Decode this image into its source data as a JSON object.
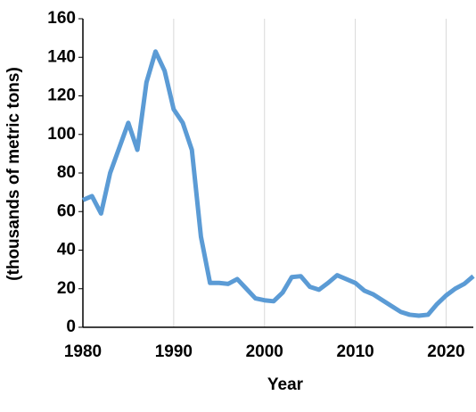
{
  "chart_data": {
    "type": "line",
    "x_label": "Year",
    "y_label": "(thousands of metric tons)",
    "x": [
      1980,
      1981,
      1982,
      1983,
      1984,
      1985,
      1986,
      1987,
      1988,
      1989,
      1990,
      1991,
      1992,
      1993,
      1994,
      1995,
      1996,
      1997,
      1998,
      1999,
      2000,
      2001,
      2002,
      2003,
      2004,
      2005,
      2006,
      2007,
      2008,
      2009,
      2010,
      2011,
      2012,
      2013,
      2014,
      2015,
      2016,
      2017,
      2018,
      2019,
      2020,
      2021,
      2022,
      2023
    ],
    "series": [
      {
        "color": "#5b9bd5",
        "values": [
          66,
          68,
          59,
          80,
          93,
          106,
          92,
          127,
          143,
          133,
          113,
          106,
          92,
          47,
          23,
          23,
          22.5,
          25,
          20,
          15,
          14,
          13.5,
          18,
          26,
          26.5,
          21,
          19.5,
          23,
          27,
          25,
          23,
          19,
          17,
          14,
          11,
          8,
          6.5,
          6,
          6.5,
          12,
          16.5,
          20,
          22.5,
          26.5
        ]
      }
    ],
    "xlim": [
      1980,
      2023
    ],
    "xticks": [
      1980,
      1990,
      2000,
      2010,
      2020
    ],
    "ylim": [
      0,
      160
    ],
    "yticks": [
      0,
      20,
      40,
      60,
      80,
      100,
      120,
      140,
      160
    ],
    "grid": "x"
  }
}
